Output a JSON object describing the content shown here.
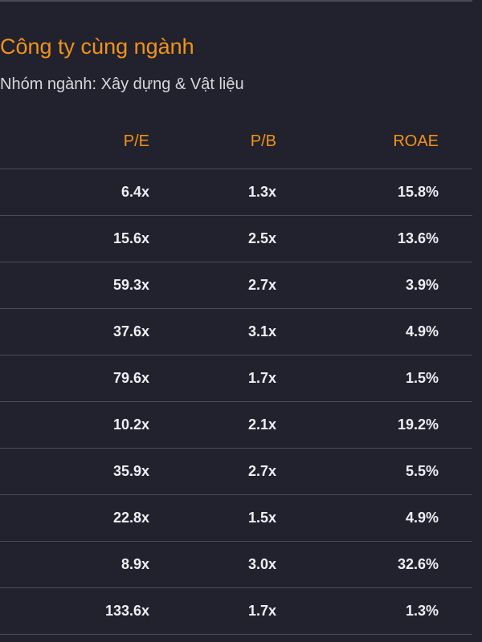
{
  "section": {
    "title": "Công ty cùng ngành",
    "industry_label": "Nhóm ngành: Xây dựng & Vật liệu"
  },
  "table": {
    "headers": {
      "pe": "P/E",
      "pb": "P/B",
      "roae": "ROAE"
    },
    "rows": [
      {
        "pe": "6.4x",
        "pb": "1.3x",
        "roae": "15.8%"
      },
      {
        "pe": "15.6x",
        "pb": "2.5x",
        "roae": "13.6%"
      },
      {
        "pe": "59.3x",
        "pb": "2.7x",
        "roae": "3.9%"
      },
      {
        "pe": "37.6x",
        "pb": "3.1x",
        "roae": "4.9%"
      },
      {
        "pe": "79.6x",
        "pb": "1.7x",
        "roae": "1.5%"
      },
      {
        "pe": "10.2x",
        "pb": "2.1x",
        "roae": "19.2%"
      },
      {
        "pe": "35.9x",
        "pb": "2.7x",
        "roae": "5.5%"
      },
      {
        "pe": "22.8x",
        "pb": "1.5x",
        "roae": "4.9%"
      },
      {
        "pe": "8.9x",
        "pb": "3.0x",
        "roae": "32.6%"
      },
      {
        "pe": "133.6x",
        "pb": "1.7x",
        "roae": "1.3%"
      }
    ]
  },
  "colors": {
    "background": "#21222d",
    "accent": "#f3921a",
    "divider": "#4a4c59",
    "text": "#eeeff3"
  }
}
